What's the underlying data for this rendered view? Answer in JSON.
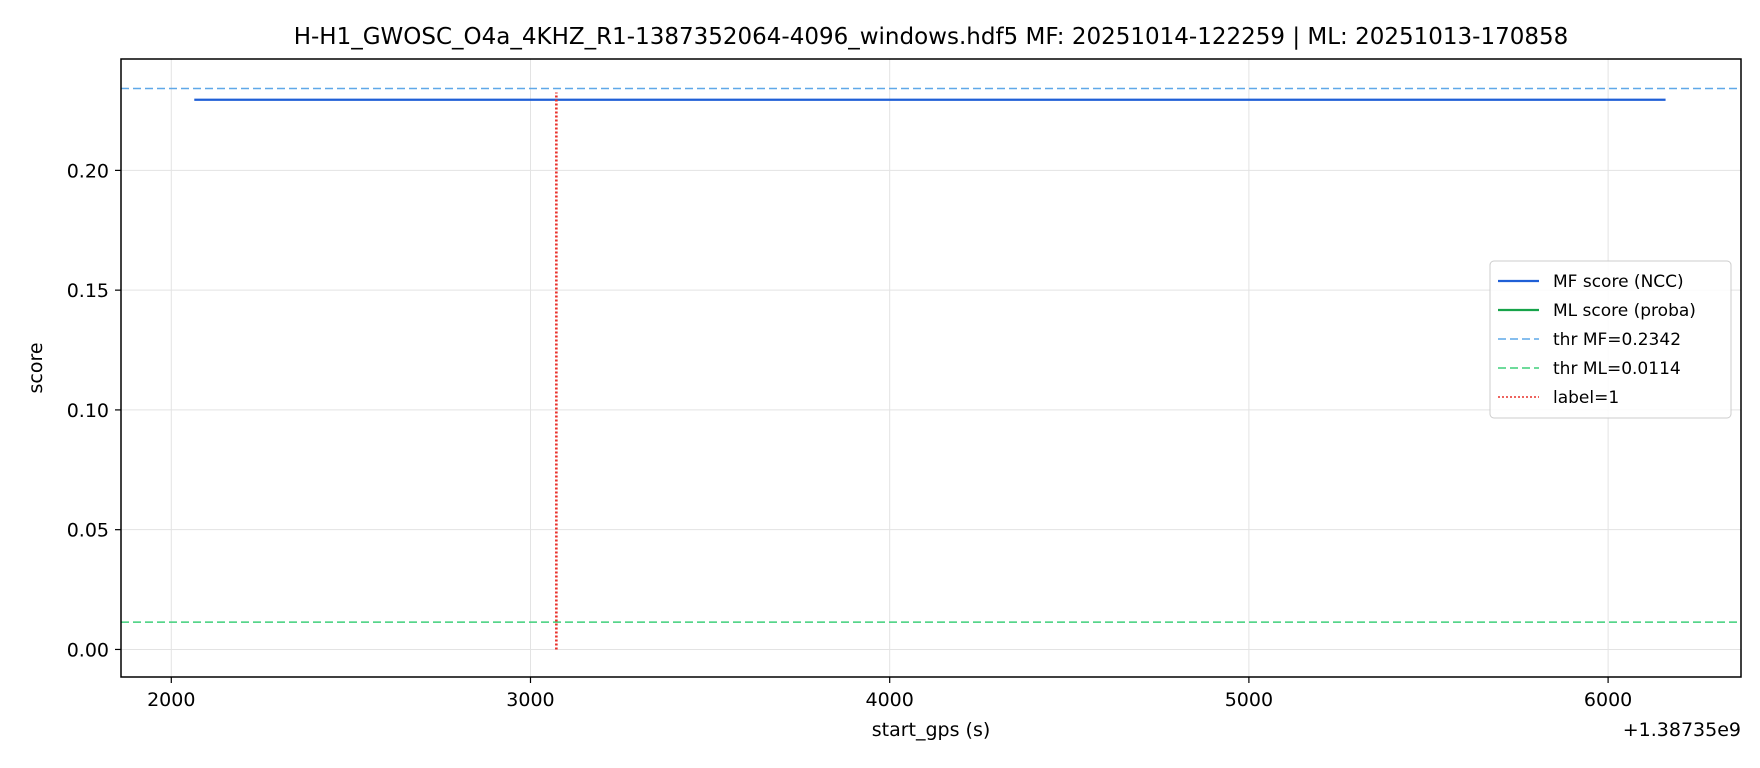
{
  "chart_data": {
    "type": "line",
    "title": "H-H1_GWOSC_O4a_4KHZ_R1-1387352064-4096_windows.hdf5  MF: 20251014-122259 | ML: 20251013-170858",
    "xlabel": "start_gps (s)",
    "ylabel": "score",
    "x_offset_label": "+1.38735e9",
    "xlim": [
      1860,
      6370
    ],
    "ylim": [
      -0.0115,
      0.2465
    ],
    "x_ticks": [
      2000,
      3000,
      4000,
      5000,
      6000
    ],
    "x_tick_labels": [
      "2000",
      "3000",
      "4000",
      "5000",
      "6000"
    ],
    "y_ticks": [
      0.0,
      0.05,
      0.1,
      0.15,
      0.2
    ],
    "y_tick_labels": [
      "0.00",
      "0.05",
      "0.10",
      "0.15",
      "0.20"
    ],
    "grid": true,
    "legend_position": "center-right",
    "series": [
      {
        "name": "MF score (NCC)",
        "color": "#1f5fd6",
        "style": "solid",
        "x": [
          2064,
          6160
        ],
        "y": [
          0.2295,
          0.2295
        ]
      },
      {
        "name": "ML score (proba)",
        "color": "#16a34a",
        "style": "solid",
        "x": [],
        "y": []
      }
    ],
    "thresholds": [
      {
        "name": "thr MF=0.2342",
        "value": 0.2342,
        "color": "#5fa8e8",
        "style": "dashed"
      },
      {
        "name": "thr ML=0.0114",
        "value": 0.0114,
        "color": "#3fcf7a",
        "style": "dashed"
      }
    ],
    "labels": [
      {
        "name": "label=1",
        "x": 3072,
        "y_range": [
          0.0,
          0.2325
        ],
        "color": "#e8302a",
        "style": "dotted"
      }
    ]
  }
}
